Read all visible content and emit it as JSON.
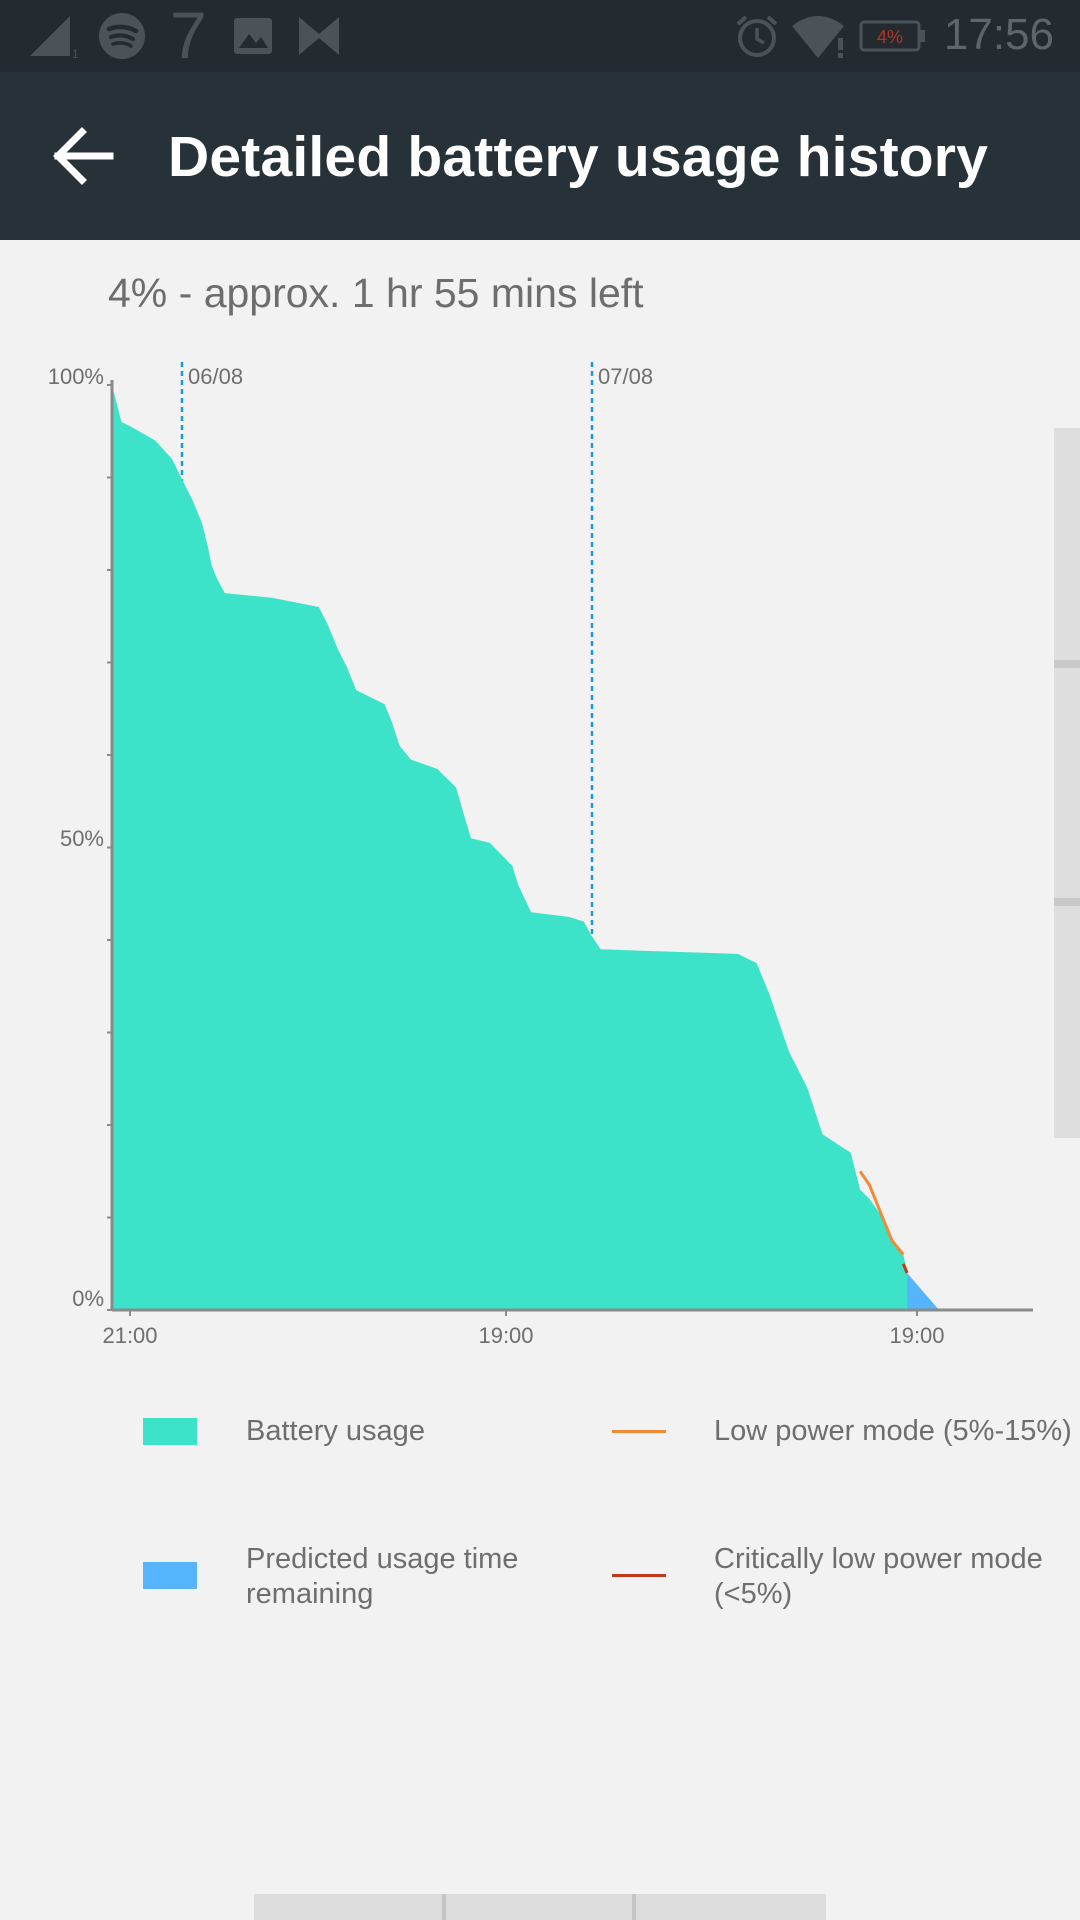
{
  "status_bar": {
    "time": "17:56",
    "battery_text": "4%",
    "notification_digit": "7",
    "icons": [
      "signal-icon",
      "spotify-icon",
      "seven-app-icon",
      "image-icon",
      "bowtie-icon",
      "alarm-icon",
      "wifi-icon",
      "battery-icon"
    ]
  },
  "app_bar": {
    "title": "Detailed battery usage history",
    "back_icon": "arrow-back-icon"
  },
  "summary": "4% - approx. 1 hr 55 mins left",
  "colors": {
    "battery_usage": "#3de3c8",
    "predicted": "#55b4fb",
    "low_power": "#f08a36",
    "critical": "#c0381b",
    "date_marker": "#1a9ad6",
    "app_bar": "#263238",
    "status_bar": "#232b30"
  },
  "chart_data": {
    "type": "area",
    "y_ticks": [
      "100%",
      "50%",
      "0%"
    ],
    "x_ticks": [
      "21:00",
      "19:00",
      "19:00"
    ],
    "date_markers": [
      "06/08",
      "07/08"
    ],
    "ylim": [
      0,
      100
    ],
    "x_unit": "hours since 21:00 (06/08 eve)",
    "xlim": [
      0,
      49
    ],
    "series": [
      {
        "name": "Battery usage",
        "x": [
          0,
          0.5,
          1,
          2.3,
          3.2,
          3.8,
          4.3,
          4.8,
          5.1,
          5.3,
          5.6,
          6.0,
          8.5,
          11.0,
          11.5,
          12.0,
          12.5,
          13.0,
          14.5,
          14.9,
          15.3,
          15.9,
          17.3,
          18.3,
          18.8,
          19.1,
          20.1,
          21.3,
          21.6,
          22.3,
          24.3,
          25.1,
          25.5,
          26.0,
          33.3,
          34.3,
          35.0,
          35.5,
          36.0,
          37.0,
          37.8,
          39.3,
          39.8,
          40.3,
          41.0,
          41.5,
          42.1,
          42.3
        ],
        "values": [
          100,
          96,
          95.5,
          94,
          92,
          89.5,
          87.5,
          85,
          82.5,
          80.5,
          79,
          77.5,
          77,
          76,
          74,
          71.5,
          69.5,
          67,
          65.5,
          63.5,
          61,
          59.5,
          58.5,
          56.5,
          53,
          51,
          50.5,
          48,
          46,
          43,
          42.5,
          42,
          40.5,
          39,
          38.5,
          37.5,
          34,
          31,
          28,
          24,
          19,
          17,
          13,
          12,
          10,
          7.5,
          6,
          4
        ]
      },
      {
        "name": "Predicted usage time remaining",
        "x": [
          42.3,
          44.0
        ],
        "values": [
          4,
          0
        ]
      },
      {
        "name": "Low power mode (5%-15%)",
        "x": [
          39.8,
          40.3,
          41.0,
          41.5,
          42.1
        ],
        "values": [
          15,
          13.5,
          10,
          7.5,
          6
        ]
      },
      {
        "name": "Critically low power mode (<5%)",
        "x": [
          42.1,
          42.3
        ],
        "values": [
          5,
          4
        ]
      }
    ]
  },
  "legend": [
    {
      "label": "Battery usage",
      "kind": "swatch"
    },
    {
      "label": "Low power mode (5%-15%)",
      "kind": "line"
    },
    {
      "label": "Predicted usage time remaining",
      "kind": "swatch"
    },
    {
      "label": "Critically low power mode (<5%)",
      "kind": "line"
    }
  ]
}
